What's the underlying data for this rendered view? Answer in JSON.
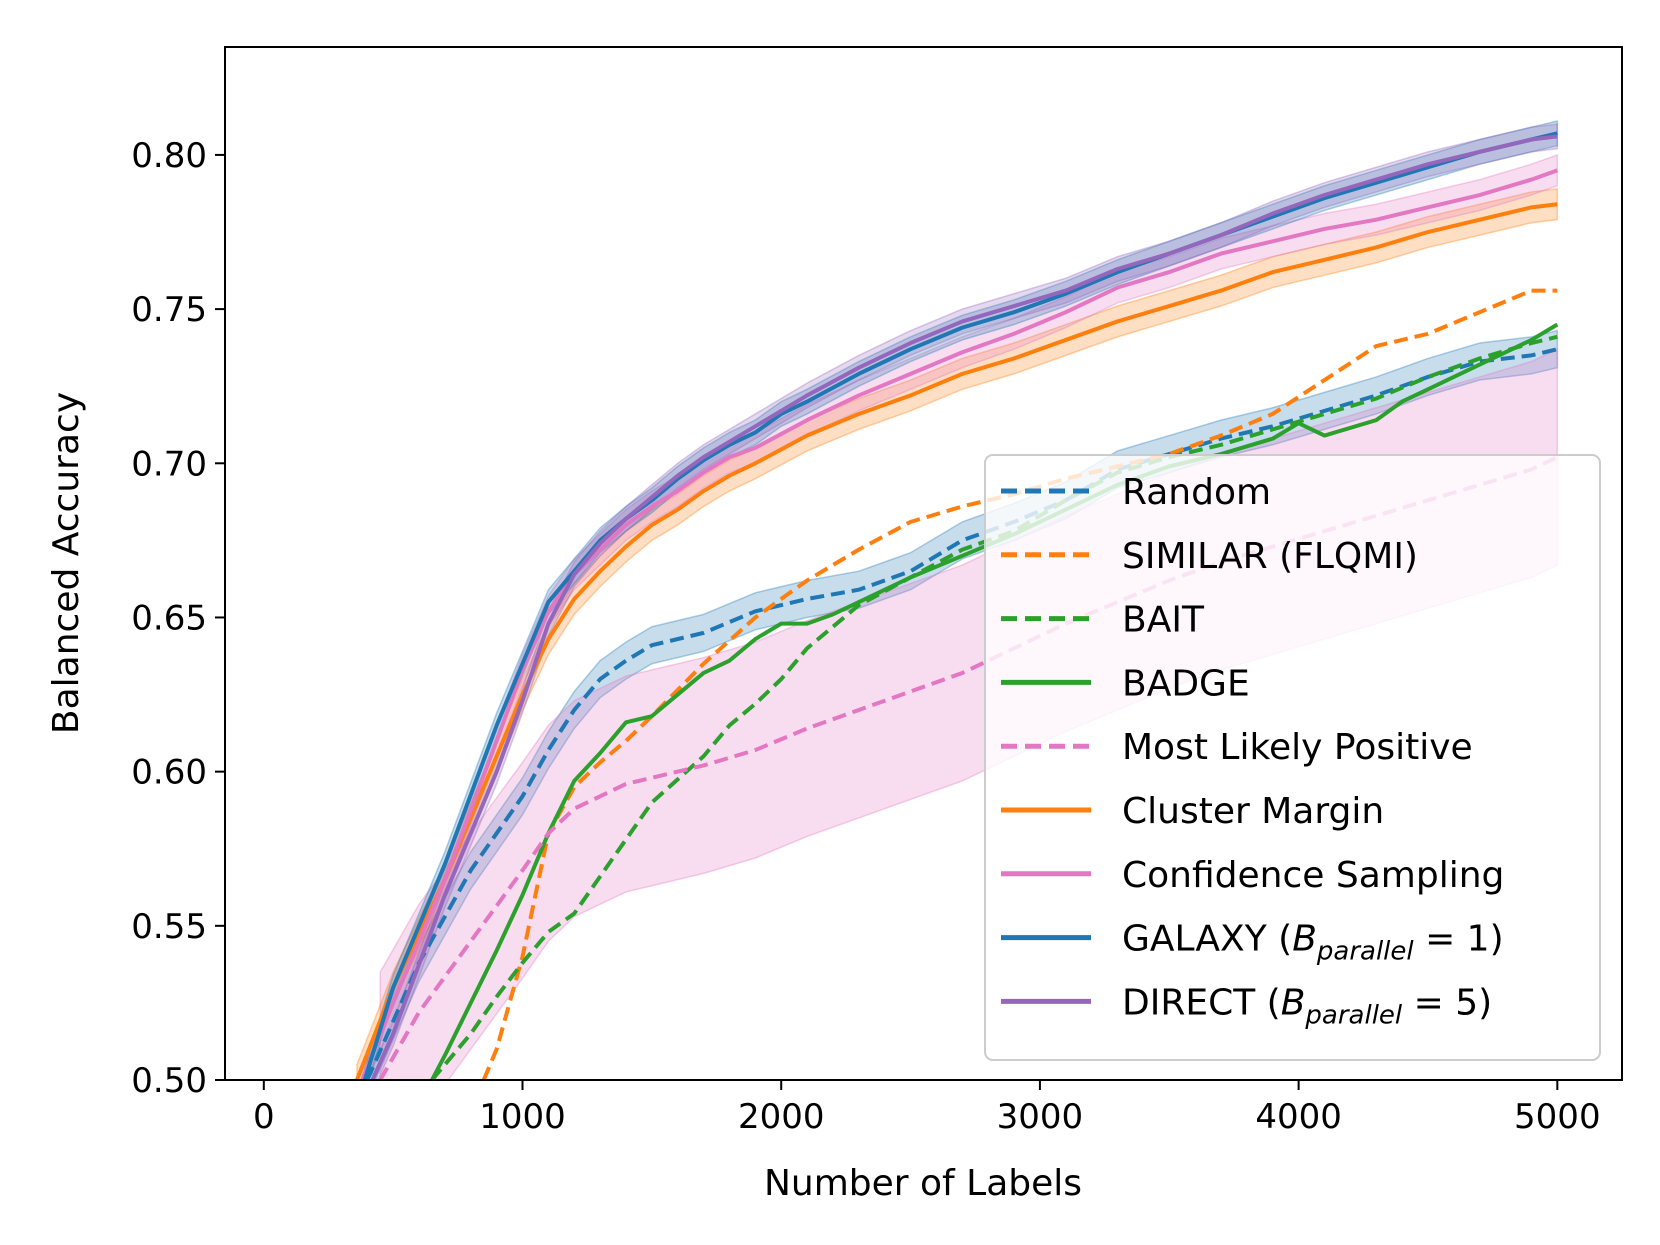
{
  "chart_data": {
    "type": "line",
    "xlabel": "Number of Labels",
    "ylabel": "Balanced Accuracy",
    "xlim": [
      -150,
      5250
    ],
    "ylim": [
      0.5,
      0.835
    ],
    "xticks": [
      0,
      1000,
      2000,
      3000,
      4000,
      5000
    ],
    "xtick_labels": [
      "0",
      "1000",
      "2000",
      "3000",
      "4000",
      "5000"
    ],
    "yticks": [
      0.5,
      0.55,
      0.6,
      0.65,
      0.7,
      0.75,
      0.8
    ],
    "ytick_labels": [
      "0.50",
      "0.55",
      "0.60",
      "0.65",
      "0.70",
      "0.75",
      "0.80"
    ],
    "grid": false,
    "legend_position": "lower-right",
    "series": [
      {
        "name": "Random",
        "label_parts": [
          "Random"
        ],
        "color": "#1f77b4",
        "dash": true,
        "band": 0.006,
        "x": [
          400,
          600,
          800,
          1000,
          1100,
          1200,
          1300,
          1400,
          1500,
          1700,
          1900,
          2100,
          2300,
          2500,
          2700,
          2900,
          3100,
          3300,
          3500,
          3700,
          3900,
          4100,
          4300,
          4500,
          4700,
          4900,
          5000
        ],
        "y": [
          0.5,
          0.538,
          0.568,
          0.592,
          0.607,
          0.62,
          0.63,
          0.636,
          0.641,
          0.645,
          0.652,
          0.656,
          0.659,
          0.665,
          0.675,
          0.681,
          0.688,
          0.698,
          0.703,
          0.708,
          0.712,
          0.717,
          0.722,
          0.728,
          0.733,
          0.735,
          0.737
        ]
      },
      {
        "name": "SIMILAR (FLQMI)",
        "label_parts": [
          "SIMILAR (FLQMI)"
        ],
        "color": "#ff7f0e",
        "dash": true,
        "band": 0,
        "x": [
          850,
          900,
          1000,
          1100,
          1200,
          1300,
          1400,
          1500,
          1700,
          1900,
          2100,
          2300,
          2500,
          2700,
          2900,
          3100,
          3300,
          3500,
          3700,
          3900,
          4100,
          4300,
          4500,
          4700,
          4900,
          5000
        ],
        "y": [
          0.5,
          0.51,
          0.54,
          0.58,
          0.595,
          0.603,
          0.61,
          0.618,
          0.635,
          0.65,
          0.662,
          0.672,
          0.681,
          0.686,
          0.69,
          0.695,
          0.699,
          0.703,
          0.709,
          0.716,
          0.727,
          0.738,
          0.742,
          0.749,
          0.756,
          0.756
        ]
      },
      {
        "name": "BAIT",
        "label_parts": [
          "BAIT"
        ],
        "color": "#2ca02c",
        "dash": true,
        "band": 0,
        "x": [
          650,
          800,
          900,
          1000,
          1100,
          1200,
          1300,
          1400,
          1500,
          1700,
          1800,
          1900,
          2000,
          2100,
          2300,
          2500,
          2700,
          2900,
          3100,
          3300,
          3500,
          3700,
          3900,
          4100,
          4300,
          4500,
          4700,
          4900,
          5000
        ],
        "y": [
          0.5,
          0.515,
          0.527,
          0.538,
          0.548,
          0.554,
          0.566,
          0.578,
          0.59,
          0.605,
          0.615,
          0.622,
          0.63,
          0.64,
          0.654,
          0.663,
          0.672,
          0.678,
          0.688,
          0.697,
          0.702,
          0.706,
          0.711,
          0.716,
          0.721,
          0.728,
          0.734,
          0.739,
          0.741
        ]
      },
      {
        "name": "BADGE",
        "label_parts": [
          "BADGE"
        ],
        "color": "#2ca02c",
        "dash": false,
        "band": 0,
        "x": [
          650,
          700,
          800,
          900,
          1000,
          1100,
          1200,
          1300,
          1400,
          1500,
          1600,
          1700,
          1800,
          1900,
          2000,
          2100,
          2200,
          2300,
          2500,
          2700,
          2900,
          3100,
          3300,
          3500,
          3700,
          3900,
          4000,
          4100,
          4300,
          4400,
          4500,
          4700,
          4900,
          5000
        ],
        "y": [
          0.5,
          0.508,
          0.525,
          0.542,
          0.56,
          0.58,
          0.597,
          0.606,
          0.616,
          0.618,
          0.625,
          0.632,
          0.636,
          0.643,
          0.648,
          0.648,
          0.651,
          0.655,
          0.663,
          0.67,
          0.677,
          0.685,
          0.693,
          0.699,
          0.703,
          0.708,
          0.713,
          0.709,
          0.714,
          0.72,
          0.724,
          0.732,
          0.74,
          0.745
        ]
      },
      {
        "name": "Most Likely Positive",
        "label_parts": [
          "Most Likely Positive"
        ],
        "color": "#e377c2",
        "dash": true,
        "band": 0.035,
        "x": [
          450,
          600,
          800,
          1000,
          1100,
          1200,
          1300,
          1400,
          1500,
          1700,
          1900,
          2100,
          2300,
          2500,
          2700,
          2900,
          3100,
          3300,
          3500,
          3700,
          3900,
          4100,
          4300,
          4500,
          4700,
          4900,
          5000
        ],
        "y": [
          0.5,
          0.522,
          0.545,
          0.568,
          0.58,
          0.588,
          0.592,
          0.596,
          0.598,
          0.602,
          0.607,
          0.614,
          0.62,
          0.626,
          0.632,
          0.64,
          0.648,
          0.655,
          0.662,
          0.668,
          0.673,
          0.678,
          0.683,
          0.688,
          0.693,
          0.698,
          0.702
        ]
      },
      {
        "name": "Cluster Margin",
        "label_parts": [
          "Cluster Margin"
        ],
        "color": "#ff7f0e",
        "dash": false,
        "band": 0.005,
        "x": [
          360,
          500,
          700,
          900,
          1000,
          1100,
          1200,
          1300,
          1400,
          1500,
          1600,
          1700,
          1800,
          1900,
          2100,
          2300,
          2500,
          2700,
          2900,
          3100,
          3300,
          3500,
          3700,
          3900,
          4100,
          4300,
          4500,
          4700,
          4900,
          5000
        ],
        "y": [
          0.5,
          0.53,
          0.565,
          0.605,
          0.625,
          0.643,
          0.656,
          0.665,
          0.673,
          0.68,
          0.685,
          0.691,
          0.696,
          0.7,
          0.709,
          0.716,
          0.722,
          0.729,
          0.734,
          0.74,
          0.746,
          0.751,
          0.756,
          0.762,
          0.766,
          0.77,
          0.775,
          0.779,
          0.783,
          0.784
        ]
      },
      {
        "name": "Confidence Sampling",
        "label_parts": [
          "Confidence Sampling"
        ],
        "color": "#e377c2",
        "dash": false,
        "band": 0.005,
        "x": [
          380,
          500,
          700,
          900,
          1000,
          1100,
          1200,
          1300,
          1400,
          1500,
          1600,
          1700,
          1800,
          1900,
          2100,
          2300,
          2500,
          2700,
          2900,
          3100,
          3300,
          3500,
          3700,
          3900,
          4100,
          4300,
          4500,
          4700,
          4900,
          5000
        ],
        "y": [
          0.5,
          0.525,
          0.565,
          0.61,
          0.633,
          0.652,
          0.664,
          0.672,
          0.68,
          0.686,
          0.691,
          0.697,
          0.702,
          0.705,
          0.714,
          0.722,
          0.729,
          0.736,
          0.742,
          0.749,
          0.757,
          0.762,
          0.768,
          0.772,
          0.776,
          0.779,
          0.783,
          0.787,
          0.792,
          0.795
        ]
      },
      {
        "name": "GALAXY",
        "label_parts": [
          "GALAXY (",
          "B",
          "parallel",
          " = 1)"
        ],
        "color": "#1f77b4",
        "dash": false,
        "band": 0.004,
        "x": [
          390,
          500,
          700,
          900,
          1000,
          1100,
          1200,
          1300,
          1400,
          1500,
          1600,
          1700,
          1800,
          1900,
          2000,
          2100,
          2300,
          2500,
          2700,
          2900,
          3100,
          3300,
          3500,
          3700,
          3900,
          4100,
          4300,
          4500,
          4700,
          4900,
          5000
        ],
        "y": [
          0.5,
          0.53,
          0.57,
          0.615,
          0.635,
          0.655,
          0.665,
          0.675,
          0.682,
          0.688,
          0.695,
          0.701,
          0.706,
          0.71,
          0.716,
          0.72,
          0.729,
          0.737,
          0.744,
          0.749,
          0.755,
          0.762,
          0.768,
          0.774,
          0.78,
          0.786,
          0.791,
          0.796,
          0.801,
          0.805,
          0.807
        ]
      },
      {
        "name": "DIRECT",
        "label_parts": [
          "DIRECT (",
          "B",
          "parallel",
          " = 5)"
        ],
        "color": "#9467bd",
        "dash": false,
        "band": 0.004,
        "x": [
          420,
          500,
          700,
          900,
          1000,
          1100,
          1200,
          1300,
          1400,
          1500,
          1600,
          1700,
          1800,
          1900,
          2000,
          2100,
          2300,
          2500,
          2700,
          2900,
          3100,
          3300,
          3500,
          3700,
          3900,
          4100,
          4300,
          4500,
          4700,
          4900,
          5000
        ],
        "y": [
          0.5,
          0.515,
          0.56,
          0.6,
          0.623,
          0.648,
          0.664,
          0.674,
          0.682,
          0.689,
          0.696,
          0.702,
          0.707,
          0.712,
          0.717,
          0.722,
          0.731,
          0.739,
          0.746,
          0.751,
          0.756,
          0.763,
          0.768,
          0.774,
          0.781,
          0.787,
          0.792,
          0.797,
          0.801,
          0.805,
          0.806
        ]
      }
    ]
  }
}
